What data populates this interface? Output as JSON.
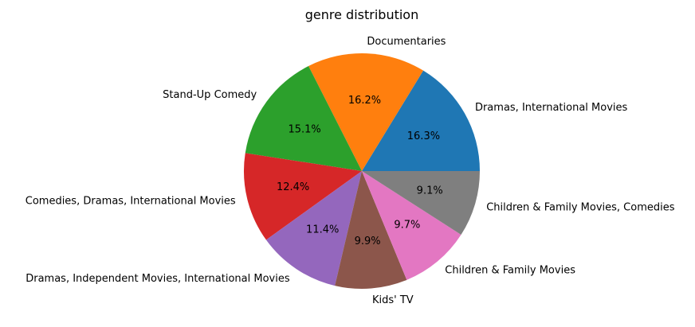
{
  "chart_data": {
    "type": "pie",
    "title": "genre distribution",
    "start_angle_deg": 0,
    "direction": "counterclockwise",
    "legend": "none",
    "slices": [
      {
        "label": "Dramas, International Movies",
        "value": 16.3,
        "pct_label": "16.3%",
        "color": "#1f77b4"
      },
      {
        "label": "Documentaries",
        "value": 16.2,
        "pct_label": "16.2%",
        "color": "#ff7f0e"
      },
      {
        "label": "Stand-Up Comedy",
        "value": 15.1,
        "pct_label": "15.1%",
        "color": "#2ca02c"
      },
      {
        "label": "Comedies, Dramas, International Movies",
        "value": 12.4,
        "pct_label": "12.4%",
        "color": "#d62728"
      },
      {
        "label": "Dramas, Independent Movies, International Movies",
        "value": 11.4,
        "pct_label": "11.4%",
        "color": "#9467bd"
      },
      {
        "label": "Kids' TV",
        "value": 9.9,
        "pct_label": "9.9%",
        "color": "#8c564b"
      },
      {
        "label": "Children & Family Movies",
        "value": 9.7,
        "pct_label": "9.7%",
        "color": "#e377c2"
      },
      {
        "label": "Children & Family Movies, Comedies",
        "value": 9.1,
        "pct_label": "9.1%",
        "color": "#7f7f7f"
      }
    ]
  }
}
